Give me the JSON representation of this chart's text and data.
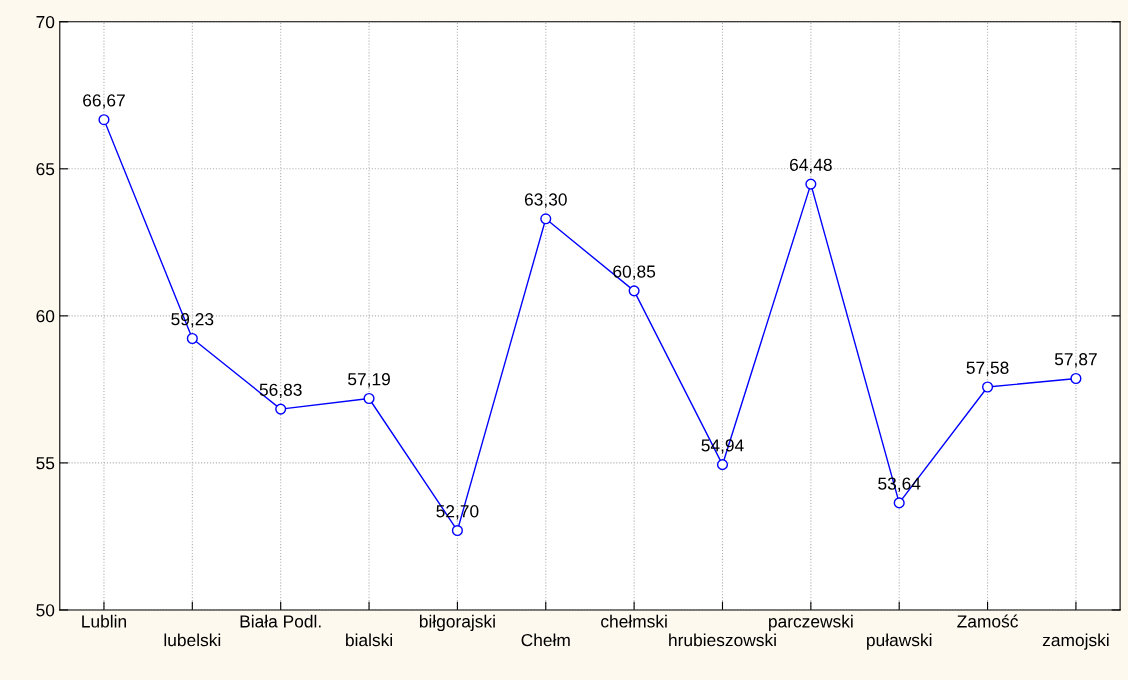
{
  "chart_data": {
    "type": "line",
    "categories": [
      "Lublin",
      "lubelski",
      "Biała Podl.",
      "bialski",
      "biłgorajski",
      "Chełm",
      "chełmski",
      "hrubieszowski",
      "parczewski",
      "puławski",
      "Zamość",
      "zamojski"
    ],
    "series": [
      {
        "color": "#0000ff",
        "values": [
          66.67,
          59.23,
          56.83,
          57.19,
          52.7,
          63.3,
          60.85,
          54.94,
          64.48,
          53.64,
          57.58,
          57.87
        ],
        "value_labels": [
          "66,67",
          "59,23",
          "56,83",
          "57,19",
          "52,70",
          "63,30",
          "60,85",
          "54,94",
          "64,48",
          "53,64",
          "57,58",
          "57,87"
        ]
      }
    ],
    "ylim": [
      50,
      70
    ],
    "yticks": [
      50,
      55,
      60,
      65,
      70
    ],
    "grid": true,
    "marker": "circle",
    "line_style": "solid",
    "legend": false
  }
}
